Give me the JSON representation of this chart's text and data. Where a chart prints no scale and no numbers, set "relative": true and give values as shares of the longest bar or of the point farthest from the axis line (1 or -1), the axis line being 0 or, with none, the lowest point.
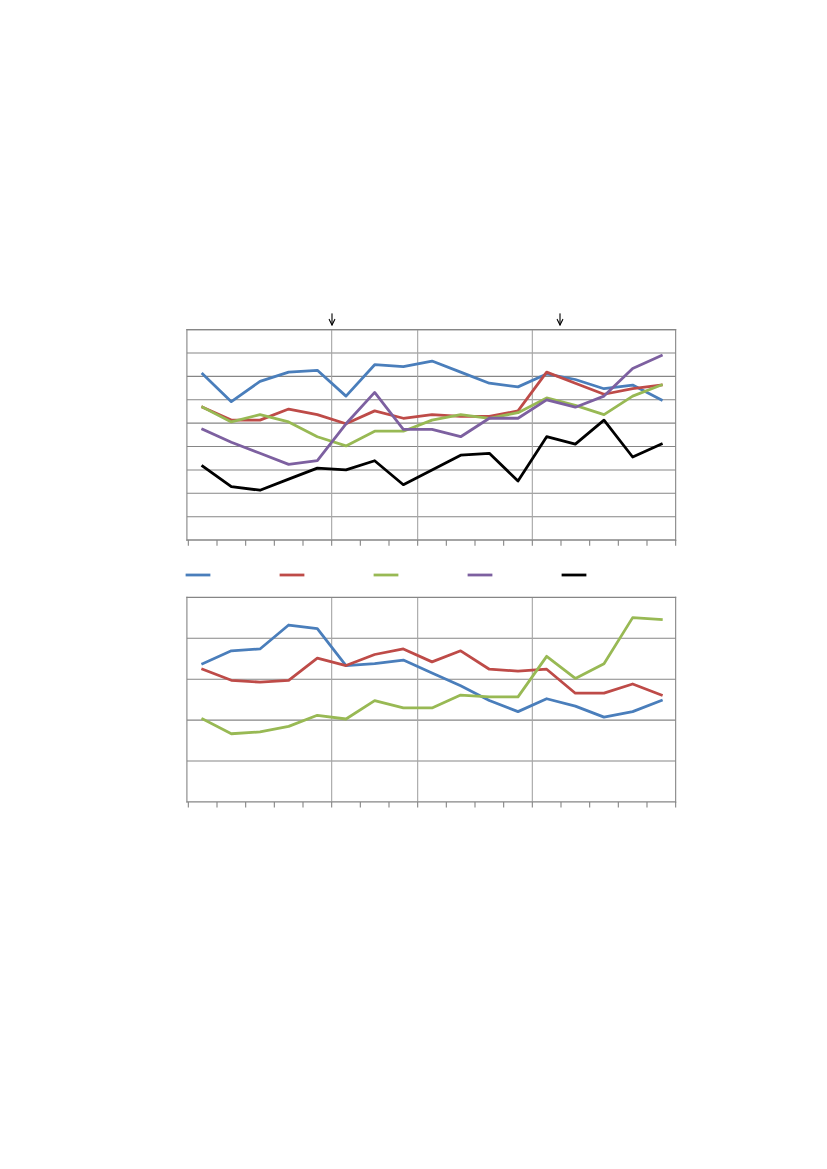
{
  "chart_data": [
    {
      "type": "line",
      "relative": true,
      "grid": "y",
      "marker": "none",
      "line_style": "solid",
      "categories": [
        null,
        null,
        null,
        null,
        null,
        null,
        null,
        null,
        null,
        null,
        null,
        null,
        null,
        null,
        null,
        null,
        null
      ],
      "series": [
        {
          "color": "#4a7ebb",
          "values": [
            0.9,
            0.75,
            0.86,
            0.91,
            0.92,
            0.78,
            0.95,
            0.94,
            0.97,
            0.91,
            0.85,
            0.83,
            0.9,
            0.87,
            0.82,
            0.84,
            0.76
          ]
        },
        {
          "color": "#be4b48",
          "values": [
            0.72,
            0.65,
            0.65,
            0.71,
            0.68,
            0.63,
            0.7,
            0.66,
            0.68,
            0.67,
            0.67,
            0.7,
            0.91,
            0.85,
            0.79,
            0.82,
            0.84
          ]
        },
        {
          "color": "#98b954",
          "values": [
            0.72,
            0.64,
            0.68,
            0.64,
            0.56,
            0.51,
            0.59,
            0.59,
            0.65,
            0.68,
            0.66,
            0.69,
            0.77,
            0.73,
            0.68,
            0.78,
            0.84
          ]
        },
        {
          "color": "#7d60a0",
          "values": [
            0.6,
            0.53,
            0.47,
            0.41,
            0.43,
            0.63,
            0.8,
            0.6,
            0.6,
            0.56,
            0.66,
            0.66,
            0.76,
            0.72,
            0.78,
            0.93,
            1
          ]
        },
        {
          "color": "#000000",
          "values": [
            0.4,
            0.29,
            0.27,
            0.33,
            0.39,
            0.38,
            0.43,
            0.3,
            0.38,
            0.46,
            0.47,
            0.32,
            0.56,
            0.52,
            0.65,
            0.45,
            0.52
          ]
        }
      ]
    },
    {
      "type": "line",
      "relative": true,
      "grid": "y",
      "marker": "none",
      "line_style": "solid",
      "categories": [
        null,
        null,
        null,
        null,
        null,
        null,
        null,
        null,
        null,
        null,
        null,
        null,
        null,
        null,
        null,
        null,
        null
      ],
      "series": [
        {
          "color": "#4a7ebb",
          "values": [
            0.75,
            0.82,
            0.83,
            0.96,
            0.94,
            0.74,
            0.75,
            0.77,
            0.7,
            0.63,
            0.55,
            0.49,
            0.56,
            0.52,
            0.46,
            0.49,
            0.55
          ]
        },
        {
          "color": "#be4b48",
          "values": [
            0.72,
            0.66,
            0.65,
            0.66,
            0.78,
            0.74,
            0.8,
            0.83,
            0.76,
            0.82,
            0.72,
            0.71,
            0.72,
            0.59,
            0.59,
            0.64,
            0.58
          ]
        },
        {
          "color": "#98b954",
          "values": [
            0.45,
            0.37,
            0.38,
            0.41,
            0.47,
            0.45,
            0.55,
            0.51,
            0.51,
            0.58,
            0.57,
            0.57,
            0.79,
            0.67,
            0.75,
            1,
            0.99
          ]
        }
      ]
    }
  ]
}
